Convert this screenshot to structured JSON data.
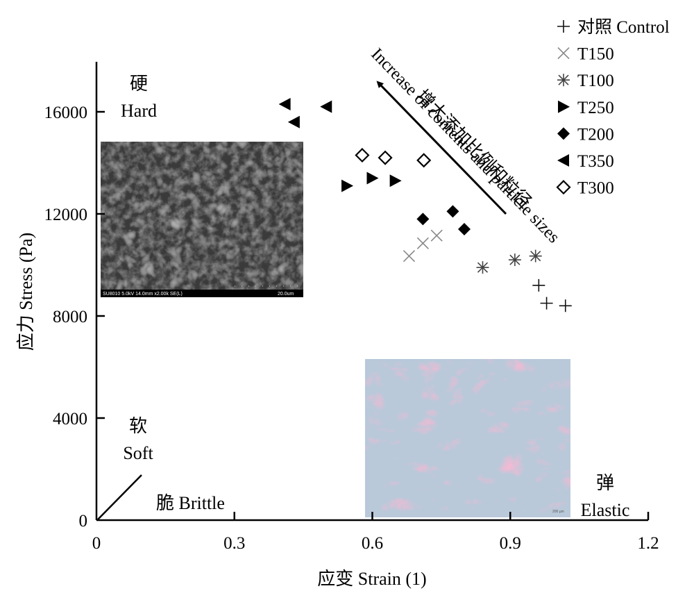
{
  "chart_data": {
    "type": "scatter",
    "xlabel": "应变 Strain (1)",
    "ylabel": "应力 Stress (Pa)",
    "xlim": [
      0,
      1.2
    ],
    "ylim": [
      0,
      17500
    ],
    "xticks": [
      "0",
      "0.3",
      "0.6",
      "0.9",
      "1.2"
    ],
    "yticks": [
      "0",
      "4000",
      "8000",
      "12000",
      "16000"
    ],
    "grid": false,
    "legend_position": "top-right",
    "series": [
      {
        "name": "对照 Control",
        "marker": "plus",
        "color": "#111111",
        "points": [
          [
            0.962,
            9200
          ],
          [
            0.979,
            8500
          ],
          [
            1.02,
            8400
          ]
        ]
      },
      {
        "name": "T150",
        "marker": "x",
        "color": "#888888",
        "points": [
          [
            0.68,
            10350
          ],
          [
            0.71,
            10850
          ],
          [
            0.74,
            11150
          ]
        ]
      },
      {
        "name": "T100",
        "marker": "asterisk",
        "color": "#444444",
        "points": [
          [
            0.84,
            9900
          ],
          [
            0.91,
            10200
          ],
          [
            0.955,
            10350
          ]
        ]
      },
      {
        "name": "T250",
        "marker": "triangle-right",
        "color": "#000000",
        "points": [
          [
            0.545,
            13100
          ],
          [
            0.6,
            13400
          ],
          [
            0.65,
            13300
          ]
        ]
      },
      {
        "name": "T200",
        "marker": "diamond-filled",
        "color": "#000000",
        "points": [
          [
            0.71,
            11800
          ],
          [
            0.775,
            12100
          ],
          [
            0.8,
            11400
          ]
        ]
      },
      {
        "name": "T350",
        "marker": "triangle-left",
        "color": "#000000",
        "points": [
          [
            0.41,
            16300
          ],
          [
            0.43,
            15600
          ],
          [
            0.5,
            16200
          ]
        ]
      },
      {
        "name": "T300",
        "marker": "diamond-open",
        "color": "#000000",
        "points": [
          [
            0.578,
            14300
          ],
          [
            0.628,
            14200
          ],
          [
            0.712,
            14100
          ]
        ]
      }
    ],
    "annotations": {
      "hard_cn": "硬",
      "hard_en": "Hard",
      "soft_cn": "软",
      "soft_en": "Soft",
      "brittle": "脆 Brittle",
      "elastic_cn": "弹",
      "elastic_en": "Elastic",
      "arrow_text_cn": "增大添加比例和粒径",
      "arrow_text_en": "Increase of contents and particle sizes"
    },
    "insets": {
      "sem_caption": "SU8010 5.0kV 14.0mm x2.00k SE(L)",
      "sem_scale": "20.0um",
      "histology_scale": "200 µm"
    }
  },
  "colors": {
    "sem_bg": "#3a3a3a",
    "histology_bg": "#b9c9da",
    "histology_tissue": "#e37fa6"
  }
}
